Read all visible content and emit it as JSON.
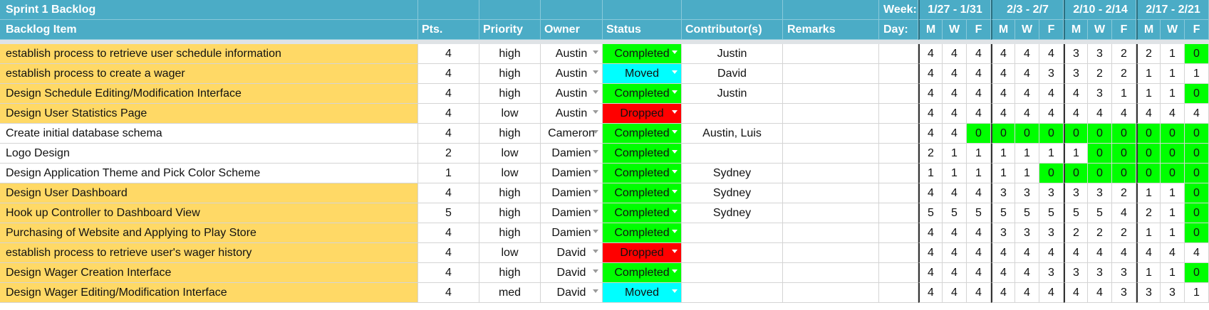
{
  "header": {
    "sheet_title": "Sprint 1 Backlog",
    "week_label": "Week:",
    "weeks": [
      "1/27 - 1/31",
      "2/3 - 2/7",
      "2/10 - 2/14",
      "2/17 - 2/21"
    ],
    "day_label": "Day:",
    "days": [
      "M",
      "W",
      "F",
      "M",
      "W",
      "F",
      "M",
      "W",
      "F",
      "M",
      "W",
      "F"
    ],
    "columns": {
      "item": "Backlog Item",
      "pts": "Pts.",
      "priority": "Priority",
      "owner": "Owner",
      "status": "Status",
      "contributors": "Contributor(s)",
      "remarks": "Remarks"
    }
  },
  "colors": {
    "header_bg": "#4bacc6",
    "highlight": "#ffd966",
    "completed": "#00ff00",
    "moved": "#00ffff",
    "dropped": "#ff0000"
  },
  "rows": [
    {
      "item": "establish process to retrieve user schedule information",
      "pts": "4",
      "priority": "high",
      "owner": "Austin",
      "status": "Completed",
      "contributors": "Justin",
      "remarks": "",
      "highlight": true,
      "burndown": [
        "4",
        "4",
        "4",
        "4",
        "4",
        "4",
        "3",
        "3",
        "2",
        "2",
        "1",
        "0"
      ]
    },
    {
      "item": "establish process to create a wager",
      "pts": "4",
      "priority": "high",
      "owner": "Austin",
      "status": "Moved",
      "contributors": "David",
      "remarks": "",
      "highlight": true,
      "burndown": [
        "4",
        "4",
        "4",
        "4",
        "4",
        "3",
        "3",
        "2",
        "2",
        "1",
        "1",
        "1"
      ]
    },
    {
      "item": "Design Schedule Editing/Modification Interface",
      "pts": "4",
      "priority": "high",
      "owner": "Austin",
      "status": "Completed",
      "contributors": "Justin",
      "remarks": "",
      "highlight": true,
      "burndown": [
        "4",
        "4",
        "4",
        "4",
        "4",
        "4",
        "4",
        "3",
        "1",
        "1",
        "1",
        "0"
      ]
    },
    {
      "item": "Design User Statistics Page",
      "pts": "4",
      "priority": "low",
      "owner": "Austin",
      "status": "Dropped",
      "contributors": "",
      "remarks": "",
      "highlight": true,
      "burndown": [
        "4",
        "4",
        "4",
        "4",
        "4",
        "4",
        "4",
        "4",
        "4",
        "4",
        "4",
        "4"
      ]
    },
    {
      "item": "Create initial database schema",
      "pts": "4",
      "priority": "high",
      "owner": "Cameron",
      "status": "Completed",
      "contributors": "Austin, Luis",
      "remarks": "",
      "highlight": false,
      "burndown": [
        "4",
        "4",
        "0",
        "0",
        "0",
        "0",
        "0",
        "0",
        "0",
        "0",
        "0",
        "0"
      ]
    },
    {
      "item": "Logo Design",
      "pts": "2",
      "priority": "low",
      "owner": "Damien",
      "status": "Completed",
      "contributors": "",
      "remarks": "",
      "highlight": false,
      "burndown": [
        "2",
        "1",
        "1",
        "1",
        "1",
        "1",
        "1",
        "0",
        "0",
        "0",
        "0",
        "0"
      ]
    },
    {
      "item": "Design Application Theme and Pick Color Scheme",
      "pts": "1",
      "priority": "low",
      "owner": "Damien",
      "status": "Completed",
      "contributors": "Sydney",
      "remarks": "",
      "highlight": false,
      "burndown": [
        "1",
        "1",
        "1",
        "1",
        "1",
        "0",
        "0",
        "0",
        "0",
        "0",
        "0",
        "0"
      ]
    },
    {
      "item": "Design User Dashboard",
      "pts": "4",
      "priority": "high",
      "owner": "Damien",
      "status": "Completed",
      "contributors": "Sydney",
      "remarks": "",
      "highlight": true,
      "burndown": [
        "4",
        "4",
        "4",
        "3",
        "3",
        "3",
        "3",
        "3",
        "2",
        "1",
        "1",
        "0"
      ]
    },
    {
      "item": "Hook up Controller to Dashboard View",
      "pts": "5",
      "priority": "high",
      "owner": "Damien",
      "status": "Completed",
      "contributors": "Sydney",
      "remarks": "",
      "highlight": true,
      "burndown": [
        "5",
        "5",
        "5",
        "5",
        "5",
        "5",
        "5",
        "5",
        "4",
        "2",
        "1",
        "0"
      ]
    },
    {
      "item": "Purchasing of Website and Applying to Play Store",
      "pts": "4",
      "priority": "high",
      "owner": "Damien",
      "status": "Completed",
      "contributors": "",
      "remarks": "",
      "highlight": true,
      "burndown": [
        "4",
        "4",
        "4",
        "3",
        "3",
        "3",
        "2",
        "2",
        "2",
        "1",
        "1",
        "0"
      ]
    },
    {
      "item": "establish process to retrieve user's wager history",
      "pts": "4",
      "priority": "low",
      "owner": "David",
      "status": "Dropped",
      "contributors": "",
      "remarks": "",
      "highlight": true,
      "burndown": [
        "4",
        "4",
        "4",
        "4",
        "4",
        "4",
        "4",
        "4",
        "4",
        "4",
        "4",
        "4"
      ]
    },
    {
      "item": "Design Wager Creation Interface",
      "pts": "4",
      "priority": "high",
      "owner": "David",
      "status": "Completed",
      "contributors": "",
      "remarks": "",
      "highlight": true,
      "burndown": [
        "4",
        "4",
        "4",
        "4",
        "4",
        "3",
        "3",
        "3",
        "3",
        "1",
        "1",
        "0"
      ]
    },
    {
      "item": "Design Wager Editing/Modification Interface",
      "pts": "4",
      "priority": "med",
      "owner": "David",
      "status": "Moved",
      "contributors": "",
      "remarks": "",
      "highlight": true,
      "burndown": [
        "4",
        "4",
        "4",
        "4",
        "4",
        "4",
        "4",
        "4",
        "3",
        "3",
        "3",
        "1"
      ]
    }
  ]
}
